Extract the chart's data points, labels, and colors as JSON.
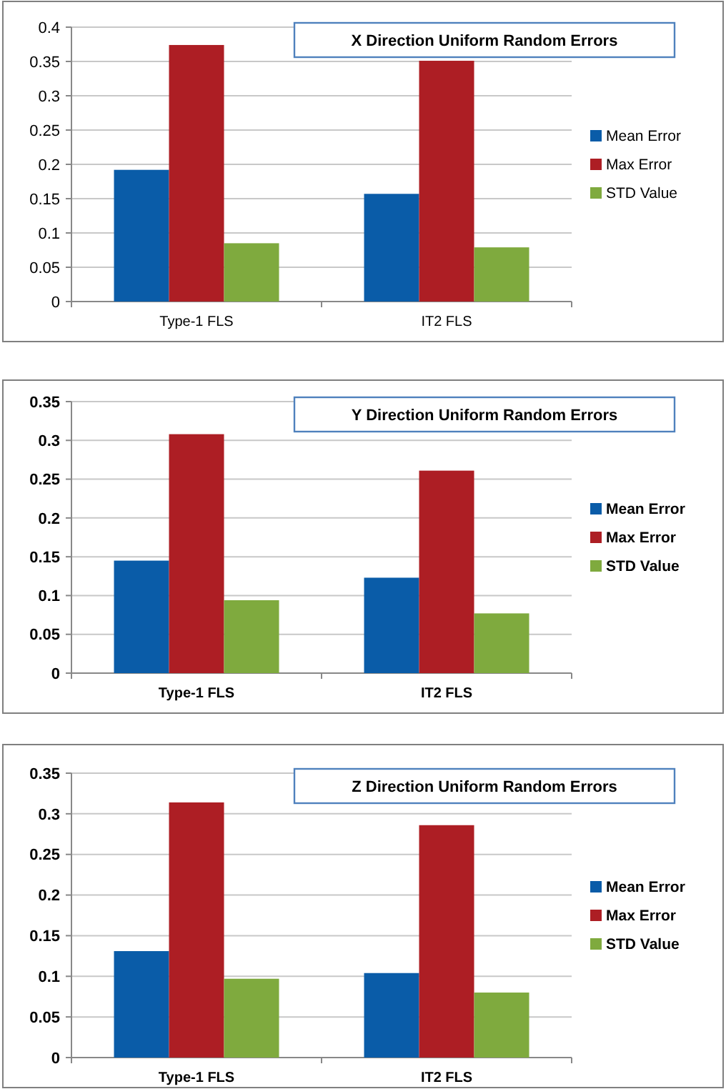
{
  "chart_data": [
    {
      "type": "bar",
      "title": "X Direction Uniform Random Errors",
      "categories": [
        "Type-1 FLS",
        "IT2 FLS"
      ],
      "series": [
        {
          "name": "Mean Error",
          "color": "#0a5ca8",
          "values": [
            0.192,
            0.157
          ]
        },
        {
          "name": "Max Error",
          "color": "#ad1e24",
          "values": [
            0.374,
            0.351
          ]
        },
        {
          "name": "STD Value",
          "color": "#7faa3e",
          "values": [
            0.085,
            0.079
          ]
        }
      ],
      "ylim": [
        0,
        0.4
      ],
      "yticks": [
        0,
        0.05,
        0.1,
        0.15,
        0.2,
        0.25,
        0.3,
        0.35,
        0.4
      ],
      "grid": "y",
      "legend": "right"
    },
    {
      "type": "bar",
      "title": "Y Direction Uniform Random Errors",
      "categories": [
        "Type-1 FLS",
        "IT2 FLS"
      ],
      "series": [
        {
          "name": "Mean Error",
          "color": "#0a5ca8",
          "values": [
            0.145,
            0.123
          ]
        },
        {
          "name": "Max Error",
          "color": "#ad1e24",
          "values": [
            0.308,
            0.261
          ]
        },
        {
          "name": "STD Value",
          "color": "#7faa3e",
          "values": [
            0.094,
            0.077
          ]
        }
      ],
      "ylim": [
        0,
        0.35
      ],
      "yticks": [
        0,
        0.05,
        0.1,
        0.15,
        0.2,
        0.25,
        0.3,
        0.35
      ],
      "grid": "y",
      "legend": "right"
    },
    {
      "type": "bar",
      "title": "Z Direction Uniform Random Errors",
      "categories": [
        "Type-1 FLS",
        "IT2 FLS"
      ],
      "series": [
        {
          "name": "Mean Error",
          "color": "#0a5ca8",
          "values": [
            0.131,
            0.104
          ]
        },
        {
          "name": "Max Error",
          "color": "#ad1e24",
          "values": [
            0.314,
            0.286
          ]
        },
        {
          "name": "STD Value",
          "color": "#7faa3e",
          "values": [
            0.097,
            0.08
          ]
        }
      ],
      "ylim": [
        0,
        0.35
      ],
      "yticks": [
        0,
        0.05,
        0.1,
        0.15,
        0.2,
        0.25,
        0.3,
        0.35
      ],
      "grid": "y",
      "legend": "right"
    }
  ]
}
